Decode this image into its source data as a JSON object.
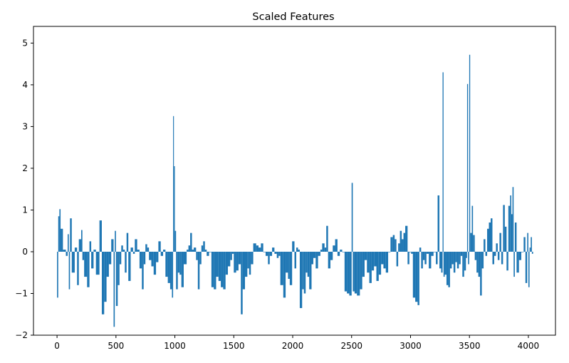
{
  "chart_data": {
    "type": "bar",
    "title": "Scaled Features",
    "xlabel": "",
    "ylabel": "",
    "xlim": [
      -200,
      4230
    ],
    "ylim": [
      -2,
      5.4
    ],
    "x_ticks": [
      0,
      500,
      1000,
      1500,
      2000,
      2500,
      3000,
      3500,
      4000
    ],
    "y_ticks": [
      -2,
      -1,
      0,
      1,
      2,
      3,
      4,
      5
    ],
    "bar_color": "#1f77b4",
    "grid": false,
    "legend": "none",
    "series": [
      {
        "segments": [
          [
            0,
            10,
            -1.1
          ],
          [
            10,
            20,
            0.85
          ],
          [
            20,
            30,
            1.02
          ],
          [
            30,
            50,
            0.55
          ],
          [
            50,
            75,
            0.05
          ],
          [
            75,
            90,
            -0.1
          ],
          [
            90,
            100,
            0.42
          ],
          [
            100,
            110,
            -0.9
          ],
          [
            110,
            125,
            0.8
          ],
          [
            125,
            150,
            -0.5
          ],
          [
            150,
            170,
            0.1
          ],
          [
            170,
            185,
            -0.8
          ],
          [
            185,
            205,
            0.3
          ],
          [
            205,
            215,
            0.52
          ],
          [
            215,
            230,
            -0.2
          ],
          [
            230,
            255,
            -0.6
          ],
          [
            255,
            275,
            -0.85
          ],
          [
            275,
            290,
            0.25
          ],
          [
            290,
            310,
            -0.4
          ],
          [
            310,
            330,
            0.05
          ],
          [
            330,
            360,
            -0.55
          ],
          [
            360,
            380,
            0.75
          ],
          [
            380,
            400,
            -1.5
          ],
          [
            400,
            420,
            -1.2
          ],
          [
            420,
            440,
            -0.6
          ],
          [
            440,
            460,
            -0.3
          ],
          [
            460,
            480,
            0.3
          ],
          [
            480,
            490,
            -1.8
          ],
          [
            490,
            500,
            0.5
          ],
          [
            500,
            515,
            -1.3
          ],
          [
            515,
            530,
            -0.8
          ],
          [
            530,
            545,
            -0.3
          ],
          [
            545,
            560,
            0.15
          ],
          [
            560,
            575,
            0.05
          ],
          [
            575,
            590,
            -0.5
          ],
          [
            590,
            605,
            0.45
          ],
          [
            605,
            625,
            -0.7
          ],
          [
            625,
            645,
            0.1
          ],
          [
            645,
            660,
            -0.05
          ],
          [
            660,
            680,
            0.3
          ],
          [
            680,
            700,
            0.05
          ],
          [
            700,
            720,
            -0.4
          ],
          [
            720,
            735,
            -0.9
          ],
          [
            735,
            750,
            -0.3
          ],
          [
            750,
            765,
            0.18
          ],
          [
            765,
            780,
            0.1
          ],
          [
            780,
            800,
            -0.2
          ],
          [
            800,
            820,
            -0.35
          ],
          [
            820,
            840,
            -0.55
          ],
          [
            840,
            860,
            -0.25
          ],
          [
            860,
            880,
            0.25
          ],
          [
            880,
            900,
            -0.1
          ],
          [
            900,
            920,
            0.05
          ],
          [
            920,
            940,
            -0.6
          ],
          [
            940,
            960,
            -0.75
          ],
          [
            960,
            975,
            -0.9
          ],
          [
            975,
            985,
            -1.1
          ],
          [
            985,
            992,
            3.25
          ],
          [
            992,
            1000,
            2.05
          ],
          [
            1000,
            1010,
            0.5
          ],
          [
            1010,
            1025,
            -0.9
          ],
          [
            1025,
            1040,
            -0.5
          ],
          [
            1040,
            1055,
            -0.55
          ],
          [
            1055,
            1075,
            -0.85
          ],
          [
            1075,
            1100,
            -0.3
          ],
          [
            1100,
            1115,
            0.05
          ],
          [
            1115,
            1130,
            0.15
          ],
          [
            1130,
            1145,
            0.45
          ],
          [
            1145,
            1160,
            0.05
          ],
          [
            1160,
            1180,
            0.1
          ],
          [
            1180,
            1195,
            -0.2
          ],
          [
            1195,
            1210,
            -0.9
          ],
          [
            1210,
            1225,
            -0.3
          ],
          [
            1225,
            1240,
            0.15
          ],
          [
            1240,
            1255,
            0.25
          ],
          [
            1255,
            1270,
            0.05
          ],
          [
            1270,
            1290,
            -0.1
          ],
          [
            1290,
            1310,
            0.0
          ],
          [
            1310,
            1330,
            -0.85
          ],
          [
            1330,
            1350,
            -0.9
          ],
          [
            1350,
            1370,
            -0.6
          ],
          [
            1370,
            1390,
            -0.7
          ],
          [
            1390,
            1410,
            -0.85
          ],
          [
            1410,
            1430,
            -0.9
          ],
          [
            1430,
            1450,
            -0.55
          ],
          [
            1450,
            1470,
            -0.35
          ],
          [
            1470,
            1485,
            -0.2
          ],
          [
            1485,
            1500,
            -0.05
          ],
          [
            1500,
            1520,
            -0.5
          ],
          [
            1520,
            1540,
            -0.45
          ],
          [
            1540,
            1560,
            -0.3
          ],
          [
            1560,
            1575,
            -1.5
          ],
          [
            1575,
            1595,
            -0.9
          ],
          [
            1595,
            1615,
            -0.6
          ],
          [
            1615,
            1630,
            -0.4
          ],
          [
            1630,
            1645,
            -0.55
          ],
          [
            1645,
            1665,
            -0.3
          ],
          [
            1665,
            1690,
            0.2
          ],
          [
            1690,
            1710,
            0.15
          ],
          [
            1710,
            1730,
            0.1
          ],
          [
            1730,
            1750,
            0.2
          ],
          [
            1750,
            1770,
            0.0
          ],
          [
            1770,
            1790,
            -0.1
          ],
          [
            1790,
            1805,
            -0.3
          ],
          [
            1805,
            1825,
            -0.1
          ],
          [
            1825,
            1845,
            0.1
          ],
          [
            1845,
            1865,
            -0.05
          ],
          [
            1865,
            1880,
            -0.15
          ],
          [
            1880,
            1895,
            -0.1
          ],
          [
            1895,
            1920,
            -0.8
          ],
          [
            1920,
            1940,
            -1.1
          ],
          [
            1940,
            1960,
            -0.5
          ],
          [
            1960,
            1975,
            -0.65
          ],
          [
            1975,
            1995,
            -0.8
          ],
          [
            1995,
            2015,
            0.25
          ],
          [
            2015,
            2030,
            -0.4
          ],
          [
            2030,
            2045,
            0.1
          ],
          [
            2045,
            2060,
            0.05
          ],
          [
            2060,
            2080,
            -1.35
          ],
          [
            2080,
            2095,
            -0.9
          ],
          [
            2095,
            2110,
            -1.0
          ],
          [
            2110,
            2125,
            -0.5
          ],
          [
            2125,
            2140,
            -0.6
          ],
          [
            2140,
            2160,
            -0.9
          ],
          [
            2160,
            2175,
            -0.3
          ],
          [
            2175,
            2195,
            -0.15
          ],
          [
            2195,
            2215,
            -0.4
          ],
          [
            2215,
            2235,
            -0.1
          ],
          [
            2235,
            2250,
            0.05
          ],
          [
            2250,
            2270,
            0.2
          ],
          [
            2270,
            2285,
            0.1
          ],
          [
            2285,
            2300,
            0.62
          ],
          [
            2300,
            2320,
            -0.4
          ],
          [
            2320,
            2340,
            -0.2
          ],
          [
            2340,
            2360,
            0.15
          ],
          [
            2360,
            2380,
            0.3
          ],
          [
            2380,
            2400,
            -0.1
          ],
          [
            2400,
            2420,
            0.05
          ],
          [
            2420,
            2440,
            0.0
          ],
          [
            2440,
            2460,
            -0.95
          ],
          [
            2460,
            2480,
            -1.0
          ],
          [
            2480,
            2500,
            -1.05
          ],
          [
            2500,
            2510,
            1.65
          ],
          [
            2510,
            2525,
            -0.95
          ],
          [
            2525,
            2545,
            -1.0
          ],
          [
            2545,
            2570,
            -1.05
          ],
          [
            2570,
            2590,
            -0.9
          ],
          [
            2590,
            2610,
            -0.6
          ],
          [
            2610,
            2630,
            -0.2
          ],
          [
            2630,
            2650,
            -0.5
          ],
          [
            2650,
            2670,
            -0.75
          ],
          [
            2670,
            2690,
            -0.45
          ],
          [
            2690,
            2710,
            -0.35
          ],
          [
            2710,
            2730,
            -0.7
          ],
          [
            2730,
            2750,
            -0.55
          ],
          [
            2750,
            2770,
            -0.3
          ],
          [
            2770,
            2790,
            -0.4
          ],
          [
            2790,
            2810,
            -0.5
          ],
          [
            2810,
            2830,
            0.0
          ],
          [
            2830,
            2850,
            0.35
          ],
          [
            2850,
            2865,
            0.4
          ],
          [
            2865,
            2880,
            0.3
          ],
          [
            2880,
            2895,
            -0.35
          ],
          [
            2895,
            2910,
            0.2
          ],
          [
            2910,
            2925,
            0.5
          ],
          [
            2925,
            2940,
            0.3
          ],
          [
            2940,
            2955,
            0.45
          ],
          [
            2955,
            2975,
            0.62
          ],
          [
            2975,
            2990,
            -0.3
          ],
          [
            2990,
            3005,
            0.0
          ],
          [
            3005,
            3020,
            -0.05
          ],
          [
            3020,
            3040,
            -1.1
          ],
          [
            3040,
            3060,
            -1.2
          ],
          [
            3060,
            3075,
            -1.28
          ],
          [
            3075,
            3090,
            0.1
          ],
          [
            3090,
            3105,
            -0.4
          ],
          [
            3105,
            3120,
            -0.2
          ],
          [
            3120,
            3135,
            -0.3
          ],
          [
            3135,
            3155,
            -0.05
          ],
          [
            3155,
            3175,
            -0.4
          ],
          [
            3175,
            3195,
            -0.1
          ],
          [
            3195,
            3215,
            0.0
          ],
          [
            3215,
            3230,
            -0.3
          ],
          [
            3230,
            3245,
            1.35
          ],
          [
            3245,
            3260,
            -0.4
          ],
          [
            3260,
            3272,
            -0.5
          ],
          [
            3272,
            3280,
            4.3
          ],
          [
            3280,
            3290,
            -0.6
          ],
          [
            3290,
            3305,
            -0.55
          ],
          [
            3305,
            3320,
            -0.8
          ],
          [
            3320,
            3335,
            -0.85
          ],
          [
            3335,
            3350,
            -0.4
          ],
          [
            3350,
            3365,
            -0.3
          ],
          [
            3365,
            3380,
            -0.5
          ],
          [
            3380,
            3395,
            -0.25
          ],
          [
            3395,
            3410,
            -0.4
          ],
          [
            3410,
            3425,
            -0.3
          ],
          [
            3425,
            3440,
            -0.1
          ],
          [
            3440,
            3455,
            -0.6
          ],
          [
            3455,
            3470,
            -0.45
          ],
          [
            3470,
            3480,
            -0.15
          ],
          [
            3480,
            3488,
            4.02
          ],
          [
            3488,
            3498,
            -0.3
          ],
          [
            3498,
            3506,
            4.72
          ],
          [
            3506,
            3520,
            0.45
          ],
          [
            3520,
            3530,
            1.1
          ],
          [
            3530,
            3545,
            0.4
          ],
          [
            3545,
            3560,
            -0.2
          ],
          [
            3560,
            3575,
            -0.5
          ],
          [
            3575,
            3590,
            -0.6
          ],
          [
            3590,
            3605,
            -1.05
          ],
          [
            3605,
            3620,
            -0.4
          ],
          [
            3620,
            3635,
            0.3
          ],
          [
            3635,
            3650,
            -0.1
          ],
          [
            3650,
            3665,
            0.55
          ],
          [
            3665,
            3680,
            0.7
          ],
          [
            3680,
            3695,
            0.8
          ],
          [
            3695,
            3710,
            -0.3
          ],
          [
            3710,
            3725,
            -0.1
          ],
          [
            3725,
            3740,
            0.2
          ],
          [
            3740,
            3755,
            -0.2
          ],
          [
            3755,
            3770,
            0.45
          ],
          [
            3770,
            3785,
            -0.3
          ],
          [
            3785,
            3800,
            1.12
          ],
          [
            3800,
            3815,
            0.6
          ],
          [
            3815,
            3830,
            -0.45
          ],
          [
            3830,
            3845,
            1.1
          ],
          [
            3845,
            3855,
            1.35
          ],
          [
            3855,
            3865,
            0.9
          ],
          [
            3865,
            3875,
            1.55
          ],
          [
            3875,
            3885,
            -0.6
          ],
          [
            3885,
            3900,
            0.7
          ],
          [
            3900,
            3920,
            -0.5
          ],
          [
            3920,
            3940,
            -0.2
          ],
          [
            3940,
            3960,
            0.0
          ],
          [
            3960,
            3975,
            0.35
          ],
          [
            3975,
            3990,
            -0.75
          ],
          [
            3990,
            4000,
            0.45
          ],
          [
            4000,
            4010,
            -0.85
          ],
          [
            4010,
            4020,
            0.1
          ],
          [
            4020,
            4030,
            0.35
          ],
          [
            4030,
            4040,
            -0.05
          ]
        ]
      }
    ]
  }
}
